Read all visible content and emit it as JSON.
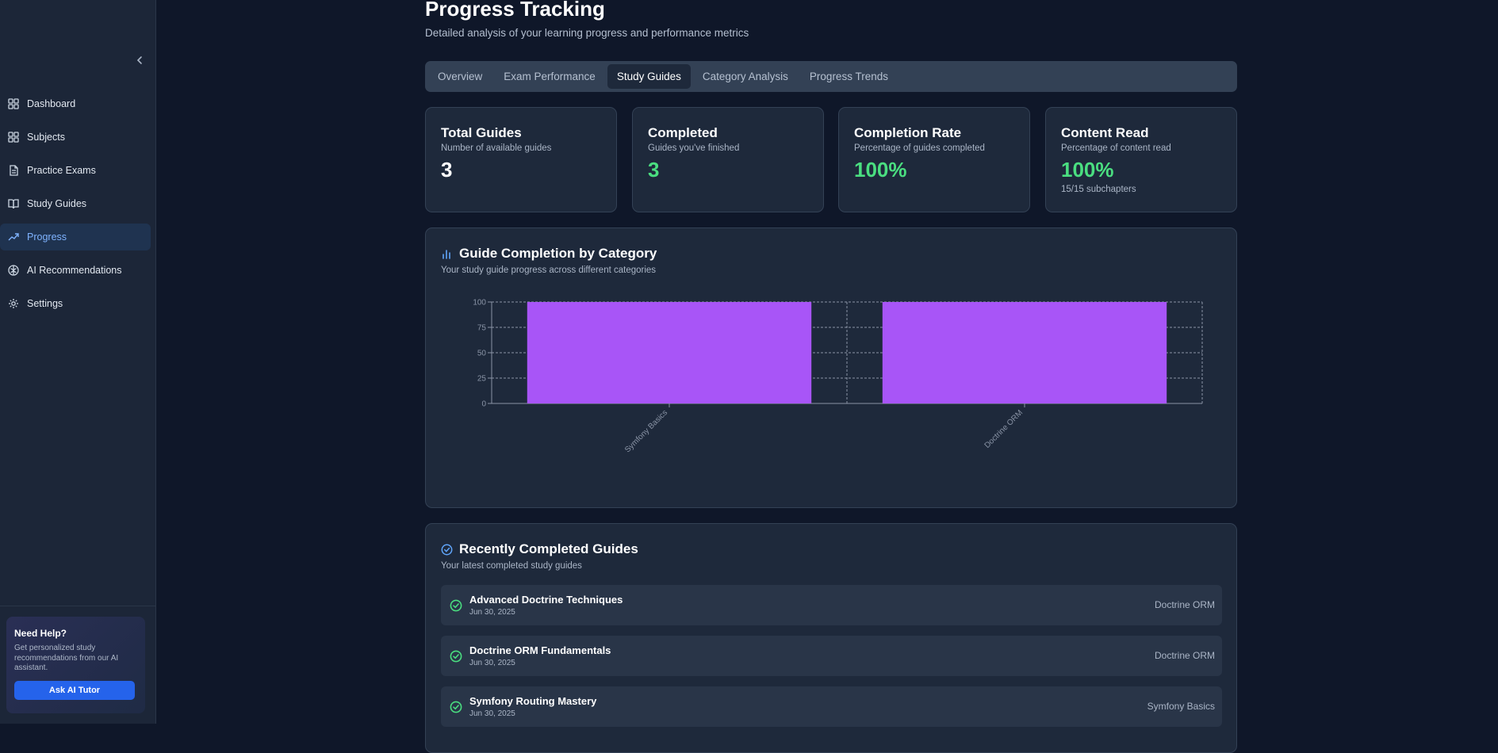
{
  "sidebar": {
    "items": [
      {
        "label": "Dashboard",
        "icon": "dashboard-icon"
      },
      {
        "label": "Subjects",
        "icon": "subjects-icon"
      },
      {
        "label": "Practice Exams",
        "icon": "document-icon"
      },
      {
        "label": "Study Guides",
        "icon": "book-icon"
      },
      {
        "label": "Progress",
        "icon": "trending-up-icon",
        "active": true
      },
      {
        "label": "AI Recommendations",
        "icon": "brain-icon"
      },
      {
        "label": "Settings",
        "icon": "gear-icon"
      }
    ],
    "help": {
      "title": "Need Help?",
      "text": "Get personalized study recommendations from our AI assistant.",
      "button": "Ask AI Tutor"
    }
  },
  "header": {
    "title": "Progress Tracking",
    "subtitle": "Detailed analysis of your learning progress and performance metrics"
  },
  "tabs": [
    {
      "label": "Overview"
    },
    {
      "label": "Exam Performance"
    },
    {
      "label": "Study Guides",
      "active": true
    },
    {
      "label": "Category Analysis"
    },
    {
      "label": "Progress Trends"
    }
  ],
  "stats": [
    {
      "title": "Total Guides",
      "desc": "Number of available guides",
      "value": "3",
      "sub": ""
    },
    {
      "title": "Completed",
      "desc": "Guides you've finished",
      "value": "3",
      "sub": ""
    },
    {
      "title": "Completion Rate",
      "desc": "Percentage of guides completed",
      "value": "100%",
      "sub": ""
    },
    {
      "title": "Content Read",
      "desc": "Percentage of content read",
      "value": "100%",
      "sub": "15/15 subchapters"
    }
  ],
  "chart_card": {
    "title": "Guide Completion by Category",
    "desc": "Your study guide progress across different categories"
  },
  "chart_data": {
    "type": "bar",
    "categories": [
      "Symfony Basics",
      "Doctrine ORM"
    ],
    "values": [
      100,
      100
    ],
    "ylim": [
      0,
      100
    ],
    "yticks": [
      0,
      25,
      50,
      75,
      100
    ],
    "grid": true,
    "bar_color": "#a855f7"
  },
  "recent": {
    "title": "Recently Completed Guides",
    "desc": "Your latest completed study guides",
    "items": [
      {
        "name": "Advanced Doctrine Techniques",
        "date": "Jun 30, 2025",
        "category": "Doctrine ORM"
      },
      {
        "name": "Doctrine ORM Fundamentals",
        "date": "Jun 30, 2025",
        "category": "Doctrine ORM"
      },
      {
        "name": "Symfony Routing Mastery",
        "date": "Jun 30, 2025",
        "category": "Symfony Basics"
      }
    ]
  },
  "colors": {
    "accent": "#2563eb",
    "success": "#4ade80",
    "bar": "#a855f7"
  }
}
